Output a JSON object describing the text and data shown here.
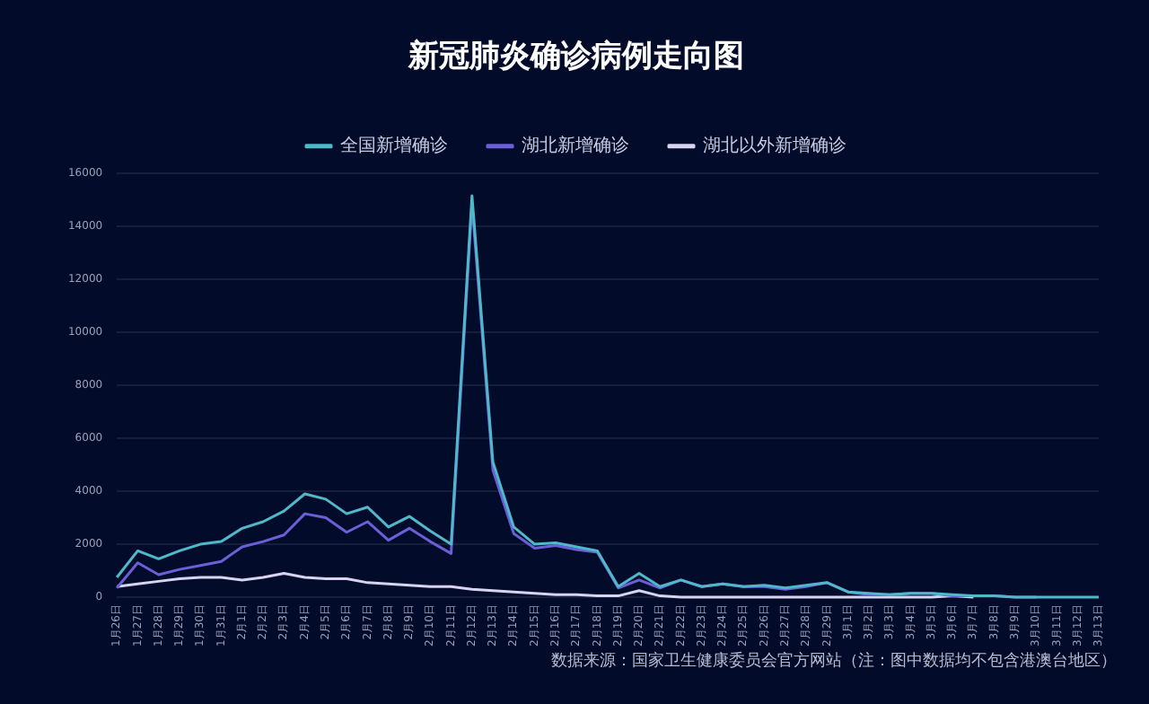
{
  "chart_data": {
    "type": "line",
    "title": "新冠肺炎确诊病例走向图",
    "categories": [
      "1月26日",
      "1月27日",
      "1月28日",
      "1月29日",
      "1月30日",
      "1月31日",
      "2月1日",
      "2月2日",
      "2月3日",
      "2月4日",
      "2月5日",
      "2月6日",
      "2月7日",
      "2月8日",
      "2月9日",
      "2月10日",
      "2月11日",
      "2月12日",
      "2月13日",
      "2月14日",
      "2月15日",
      "2月16日",
      "2月17日",
      "2月18日",
      "2月19日",
      "2月20日",
      "2月21日",
      "2月22日",
      "2月23日",
      "2月24日",
      "2月25日",
      "2月26日",
      "2月27日",
      "2月28日",
      "2月29日",
      "3月1日",
      "3月2日",
      "3月3日",
      "3月4日",
      "3月5日",
      "3月6日",
      "3月7日",
      "3月8日",
      "3月9日",
      "3月10日",
      "3月11日",
      "3月12日",
      "3月13日"
    ],
    "series": [
      {
        "name": "全国新增确诊",
        "color": "#4fb8c9",
        "values": [
          750,
          1750,
          1450,
          1750,
          2000,
          2100,
          2600,
          2850,
          3250,
          3900,
          3700,
          3150,
          3400,
          2650,
          3050,
          2500,
          2000,
          15150,
          5100,
          2650,
          2000,
          2050,
          1900,
          1750,
          400,
          900,
          400,
          650,
          400,
          500,
          400,
          450,
          350,
          450,
          550,
          200,
          150,
          100,
          150,
          150,
          100,
          50,
          50,
          0,
          0,
          0,
          0,
          0
        ]
      },
      {
        "name": "湖北新增确诊",
        "color": "#6b5fd8",
        "values": [
          350,
          1300,
          850,
          1050,
          1200,
          1350,
          1900,
          2100,
          2350,
          3150,
          3000,
          2450,
          2850,
          2150,
          2600,
          2100,
          1650,
          14850,
          4800,
          2400,
          1850,
          1950,
          1800,
          1700,
          350,
          650,
          350,
          650,
          400,
          500,
          400,
          400,
          300,
          400,
          550,
          200,
          100,
          100,
          150,
          150,
          50,
          50,
          50,
          0,
          0,
          null,
          null,
          null
        ]
      },
      {
        "name": "湖北以外新增确诊",
        "color": "#d6d4f0",
        "values": [
          400,
          500,
          600,
          700,
          750,
          750,
          650,
          750,
          900,
          750,
          700,
          700,
          550,
          500,
          450,
          400,
          400,
          300,
          250,
          200,
          150,
          100,
          100,
          50,
          50,
          250,
          50,
          0,
          0,
          0,
          0,
          0,
          0,
          0,
          0,
          0,
          0,
          0,
          0,
          0,
          50,
          0,
          null,
          null,
          null,
          null,
          null,
          null
        ]
      }
    ],
    "ylim": [
      0,
      16000
    ],
    "yticks": [
      0,
      2000,
      4000,
      6000,
      8000,
      10000,
      12000,
      14000,
      16000
    ],
    "grid": "y",
    "legend": "top",
    "marker": "none",
    "line_style": "solid",
    "annotations": [
      "数据来源：国家卫生健康委员会官方网站（注：图中数据均不包含港澳台地区）"
    ]
  }
}
